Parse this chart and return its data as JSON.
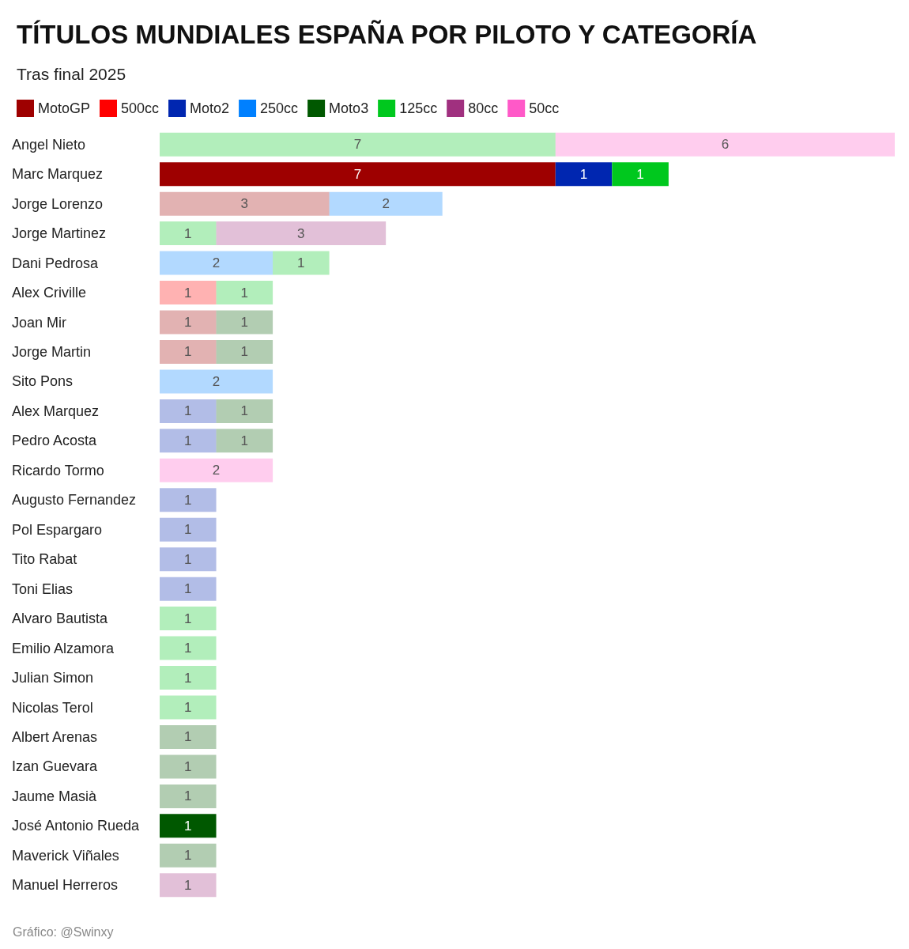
{
  "chart_data": {
    "type": "bar",
    "orientation": "horizontal",
    "stacked": true,
    "title": "TÍTULOS MUNDIALES ESPAÑA POR PILOTO Y CATEGORÍA",
    "subtitle": "Tras final 2025",
    "annotations": [
      "Gráfico: @Swinxy"
    ],
    "legend": "top left",
    "grid": false,
    "data_labels": true,
    "categories": [
      "Angel Nieto",
      "Marc Marquez",
      "Jorge Lorenzo",
      "Jorge Martinez",
      "Dani Pedrosa",
      "Alex Criville",
      "Joan Mir",
      "Jorge Martin",
      "Sito Pons",
      "Alex Marquez",
      "Pedro Acosta",
      "Ricardo Tormo",
      "Augusto Fernandez",
      "Pol Espargaro",
      "Tito Rabat",
      "Toni Elias",
      "Alvaro Bautista",
      "Emilio Alzamora",
      "Julian Simon",
      "Nicolas Terol",
      "Albert Arenas",
      "Izan Guevara",
      "Jaume Masià",
      "José Antonio Rueda",
      "Maverick Viñales",
      "Manuel Herreros"
    ],
    "series": [
      {
        "name": "MotoGP",
        "color": "#9e0000",
        "colors": [
          null,
          "#9e0000",
          "#e2b2b2",
          null,
          null,
          null,
          "#e2b2b2",
          "#e2b2b2",
          null,
          null,
          null,
          null,
          null,
          null,
          null,
          null,
          null,
          null,
          null,
          null,
          null,
          null,
          null,
          null,
          null,
          null
        ],
        "values": [
          null,
          7,
          3,
          null,
          null,
          null,
          1,
          1,
          null,
          null,
          null,
          null,
          null,
          null,
          null,
          null,
          null,
          null,
          null,
          null,
          null,
          null,
          null,
          null,
          null,
          null
        ]
      },
      {
        "name": "500cc",
        "color": "#ff0000",
        "colors": [
          null,
          null,
          null,
          null,
          null,
          "#ffb2b2",
          null,
          null,
          null,
          null,
          null,
          null,
          null,
          null,
          null,
          null,
          null,
          null,
          null,
          null,
          null,
          null,
          null,
          null,
          null,
          null
        ],
        "values": [
          null,
          null,
          null,
          null,
          null,
          1,
          null,
          null,
          null,
          null,
          null,
          null,
          null,
          null,
          null,
          null,
          null,
          null,
          null,
          null,
          null,
          null,
          null,
          null,
          null,
          null
        ]
      },
      {
        "name": "Moto2",
        "color": "#0026b0",
        "colors": [
          null,
          "#0026b0",
          null,
          null,
          null,
          null,
          null,
          null,
          null,
          "#b2bde6",
          "#b2bde6",
          null,
          "#b2bde6",
          "#b2bde6",
          "#b2bde6",
          "#b2bde6",
          null,
          null,
          null,
          null,
          null,
          null,
          null,
          null,
          null,
          null
        ],
        "values": [
          null,
          1,
          null,
          null,
          null,
          null,
          null,
          null,
          null,
          1,
          1,
          null,
          1,
          1,
          1,
          1,
          null,
          null,
          null,
          null,
          null,
          null,
          null,
          null,
          null,
          null
        ]
      },
      {
        "name": "250cc",
        "color": "#0080ff",
        "colors": [
          null,
          null,
          "#b2d8ff",
          null,
          "#b2d8ff",
          null,
          null,
          null,
          "#b2d8ff",
          null,
          null,
          null,
          null,
          null,
          null,
          null,
          null,
          null,
          null,
          null,
          null,
          null,
          null,
          null,
          null,
          null
        ],
        "values": [
          null,
          null,
          2,
          null,
          2,
          null,
          null,
          null,
          2,
          null,
          null,
          null,
          null,
          null,
          null,
          null,
          null,
          null,
          null,
          null,
          null,
          null,
          null,
          null,
          null,
          null
        ]
      },
      {
        "name": "Moto3",
        "color": "#005800",
        "colors": [
          null,
          null,
          null,
          null,
          null,
          null,
          "#b2cdb2",
          "#b2cdb2",
          null,
          "#b2cdb2",
          "#b2cdb2",
          null,
          null,
          null,
          null,
          null,
          null,
          null,
          null,
          null,
          "#b2cdb2",
          "#b2cdb2",
          "#b2cdb2",
          "#005800",
          "#b2cdb2",
          null
        ],
        "values": [
          null,
          null,
          null,
          null,
          null,
          null,
          1,
          1,
          null,
          1,
          1,
          null,
          null,
          null,
          null,
          null,
          null,
          null,
          null,
          null,
          1,
          1,
          1,
          1,
          1,
          null
        ]
      },
      {
        "name": "125cc",
        "color": "#00c81e",
        "colors": [
          "#b2efbb",
          "#00c81e",
          null,
          "#b2efbb",
          "#b2efbb",
          "#b2efbb",
          null,
          null,
          null,
          null,
          null,
          null,
          null,
          null,
          null,
          null,
          "#b2efbb",
          "#b2efbb",
          "#b2efbb",
          "#b2efbb",
          null,
          null,
          null,
          null,
          null,
          null
        ],
        "values": [
          7,
          1,
          null,
          1,
          1,
          1,
          null,
          null,
          null,
          null,
          null,
          null,
          null,
          null,
          null,
          null,
          1,
          1,
          1,
          1,
          null,
          null,
          null,
          null,
          null,
          null
        ]
      },
      {
        "name": "80cc",
        "color": "#a0307f",
        "colors": [
          null,
          null,
          null,
          "#e2c0d8",
          null,
          null,
          null,
          null,
          null,
          null,
          null,
          null,
          null,
          null,
          null,
          null,
          null,
          null,
          null,
          null,
          null,
          null,
          null,
          null,
          null,
          "#e2c0d8"
        ],
        "values": [
          null,
          null,
          null,
          3,
          null,
          null,
          null,
          null,
          null,
          null,
          null,
          null,
          null,
          null,
          null,
          null,
          null,
          null,
          null,
          null,
          null,
          null,
          null,
          null,
          null,
          1
        ]
      },
      {
        "name": "50cc",
        "color": "#ff59c8",
        "colors": [
          "#ffcdee",
          null,
          null,
          null,
          null,
          null,
          null,
          null,
          null,
          null,
          null,
          "#ffcdee",
          null,
          null,
          null,
          null,
          null,
          null,
          null,
          null,
          null,
          null,
          null,
          null,
          null,
          null
        ],
        "values": [
          6,
          null,
          null,
          null,
          null,
          null,
          null,
          null,
          null,
          null,
          null,
          2,
          null,
          null,
          null,
          null,
          null,
          null,
          null,
          null,
          null,
          null,
          null,
          null,
          null,
          null
        ]
      }
    ]
  }
}
